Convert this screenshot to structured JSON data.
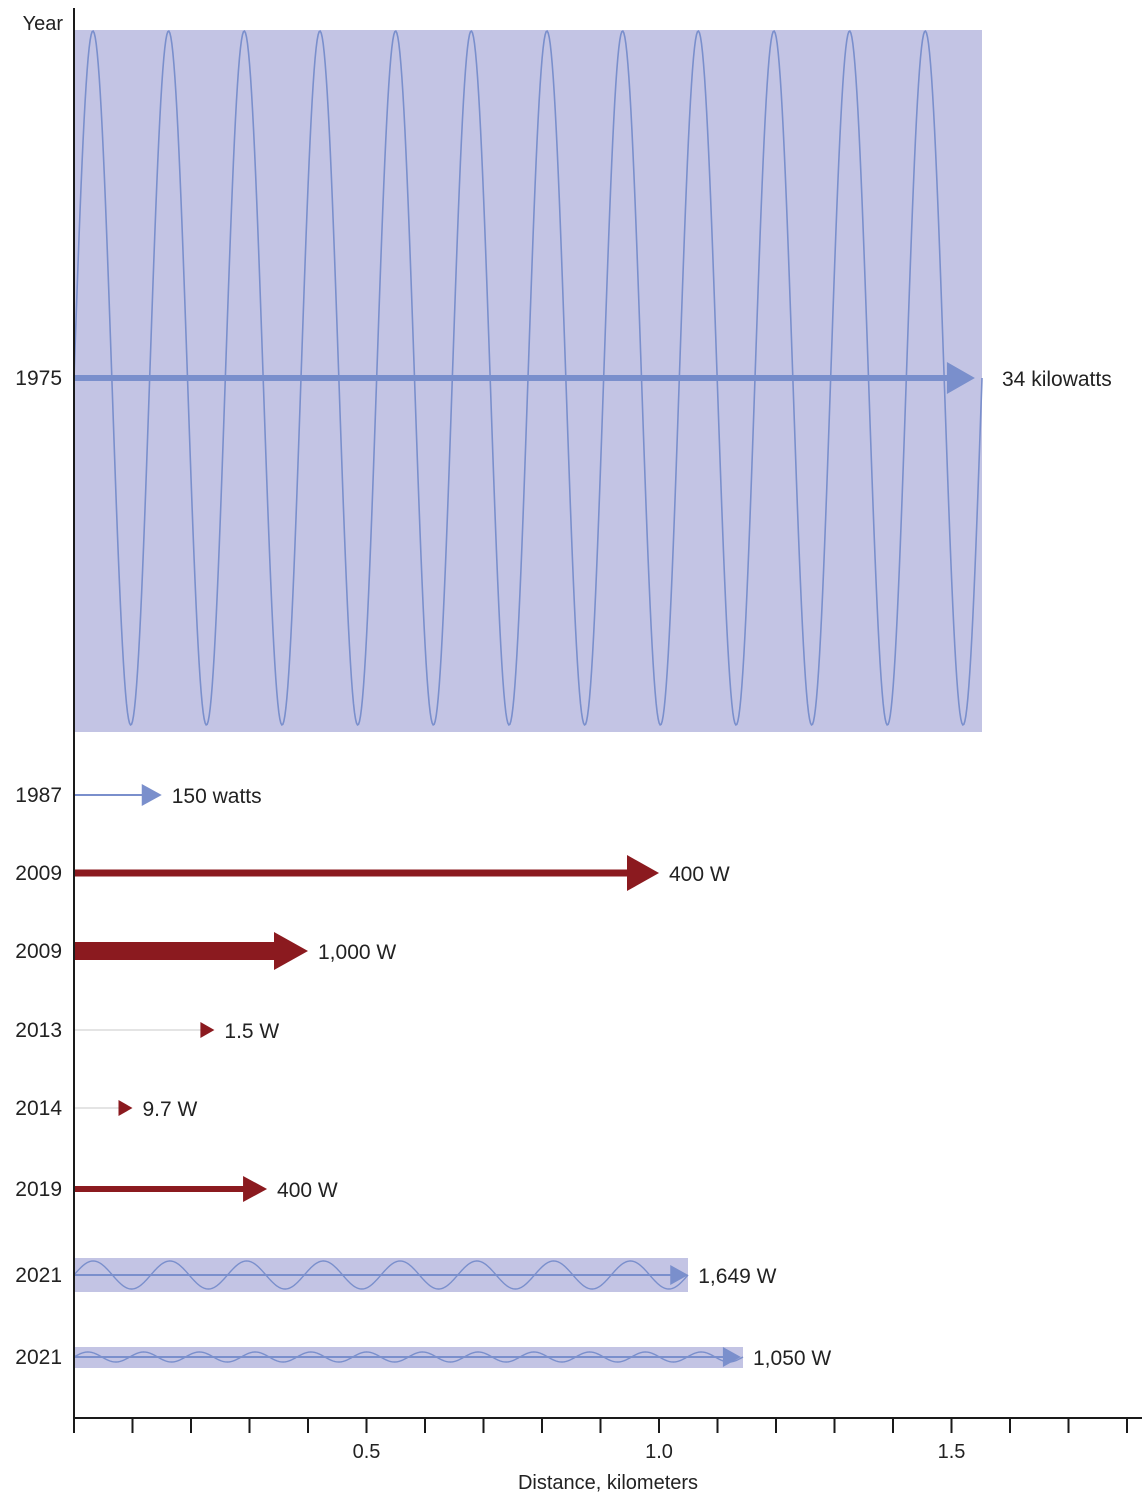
{
  "chart_data": {
    "type": "bar",
    "y_axis_label": "Year",
    "x_axis_label": "Distance, kilometers",
    "x_ticks": [
      {
        "value": 0.5,
        "label": "0.5"
      },
      {
        "value": 1.0,
        "label": "1.0"
      },
      {
        "value": 1.5,
        "label": "1.5"
      }
    ],
    "x_minor_tick_step": 0.1,
    "xlim": [
      0,
      1.82
    ],
    "colors": {
      "microwave": "#7a8fcc",
      "laser": "#8b1a1f",
      "wave_band": "#c3c4e4",
      "thin_shaft": "#c8c8c8"
    },
    "entries": [
      {
        "year": "1975",
        "distance_km": 1.54,
        "power_label": "34 kilowatts",
        "type": "microwave",
        "wave_band": true,
        "wave_cycles": 12
      },
      {
        "year": "1987",
        "distance_km": 0.15,
        "power_label": "150 watts",
        "type": "microwave",
        "wave_band": false
      },
      {
        "year": "2009",
        "distance_km": 1.0,
        "power_label": "400 W",
        "type": "laser",
        "wave_band": false
      },
      {
        "year": "2009",
        "distance_km": 0.4,
        "power_label": "1,000 W",
        "type": "laser",
        "wave_band": false
      },
      {
        "year": "2013",
        "distance_km": 0.24,
        "power_label": "1.5 W",
        "type": "laser",
        "wave_band": false
      },
      {
        "year": "2014",
        "distance_km": 0.1,
        "power_label": "9.7 W",
        "type": "laser",
        "wave_band": false
      },
      {
        "year": "2019",
        "distance_km": 0.33,
        "power_label": "400 W",
        "type": "laser",
        "wave_band": false
      },
      {
        "year": "2021",
        "distance_km": 1.05,
        "power_label": "1,649 W",
        "type": "microwave",
        "wave_band": true,
        "wave_cycles": 8
      },
      {
        "year": "2021",
        "distance_km": 1.14,
        "power_label": "1,050 W",
        "type": "microwave",
        "wave_band": true,
        "wave_cycles": 12
      }
    ]
  }
}
